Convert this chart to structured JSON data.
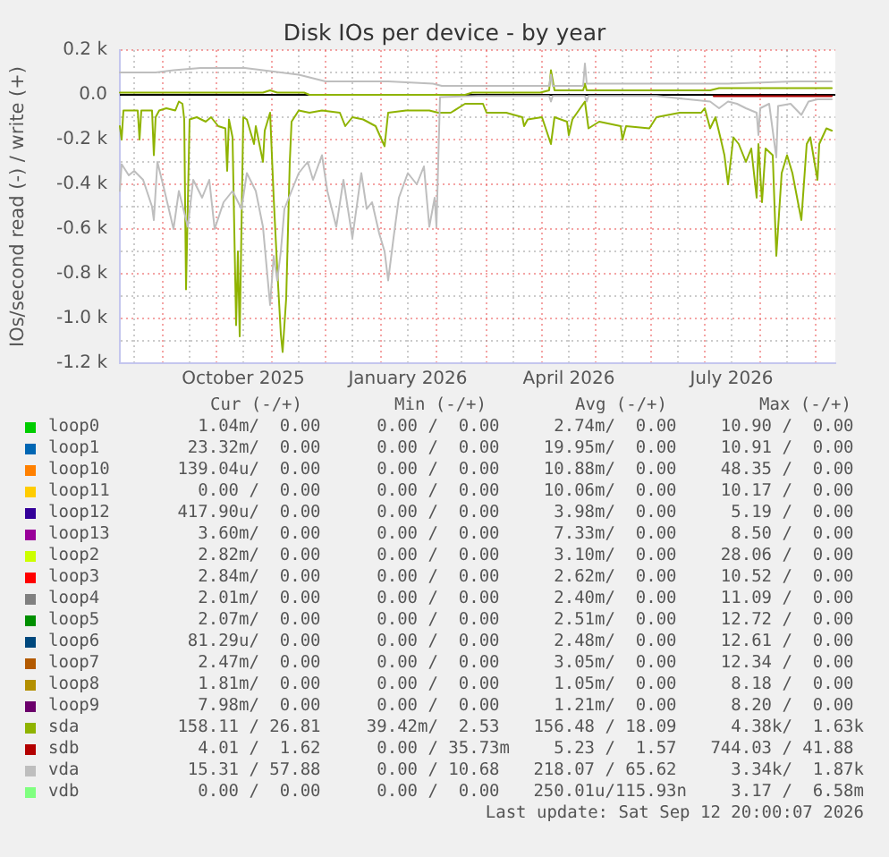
{
  "chart_data": {
    "type": "line",
    "title": "Disk IOs per device - by year",
    "ylabel": "IOs/second read (-) / write (+)",
    "legend": "bottom",
    "grid": true,
    "xlim": [
      "2025-08-08",
      "2026-09-12"
    ],
    "xticks": [
      {
        "value": "2025-08-16",
        "label": null
      },
      {
        "value": "2025-09-01",
        "label": null
      },
      {
        "value": "2025-09-16",
        "label": null
      },
      {
        "value": "2025-10-01",
        "label": null
      },
      {
        "value": "2025-10-16",
        "label": "October 2025"
      },
      {
        "value": "2025-11-01",
        "label": null
      },
      {
        "value": "2025-11-16",
        "label": null
      },
      {
        "value": "2025-12-01",
        "label": null
      },
      {
        "value": "2025-12-16",
        "label": null
      },
      {
        "value": "2026-01-01",
        "label": null
      },
      {
        "value": "2026-01-16",
        "label": "January 2026"
      },
      {
        "value": "2026-02-01",
        "label": null
      },
      {
        "value": "2026-02-15",
        "label": null
      },
      {
        "value": "2026-03-01",
        "label": null
      },
      {
        "value": "2026-03-16",
        "label": null
      },
      {
        "value": "2026-04-01",
        "label": null
      },
      {
        "value": "2026-04-16",
        "label": "April 2026"
      },
      {
        "value": "2026-05-01",
        "label": null
      },
      {
        "value": "2026-05-16",
        "label": null
      },
      {
        "value": "2026-06-01",
        "label": null
      },
      {
        "value": "2026-06-16",
        "label": null
      },
      {
        "value": "2026-07-01",
        "label": null
      },
      {
        "value": "2026-07-16",
        "label": "July 2026"
      },
      {
        "value": "2026-08-01",
        "label": null
      },
      {
        "value": "2026-08-16",
        "label": null
      },
      {
        "value": "2026-09-01",
        "label": null
      }
    ],
    "ylim": [
      -1200,
      200
    ],
    "yticks": [
      {
        "value": -1200,
        "label": "-1.2 k"
      },
      {
        "value": -1100,
        "label": null
      },
      {
        "value": -1000,
        "label": "-1.0 k"
      },
      {
        "value": -900,
        "label": null
      },
      {
        "value": -800,
        "label": "-0.8 k"
      },
      {
        "value": -700,
        "label": null
      },
      {
        "value": -600,
        "label": "-0.6 k"
      },
      {
        "value": -500,
        "label": null
      },
      {
        "value": -400,
        "label": "-0.4 k"
      },
      {
        "value": -300,
        "label": null
      },
      {
        "value": -200,
        "label": "-0.2 k"
      },
      {
        "value": -100,
        "label": null
      },
      {
        "value": 0,
        "label": "0.0"
      },
      {
        "value": 100,
        "label": null
      },
      {
        "value": 200,
        "label": "0.2 k"
      }
    ],
    "ref_lines": [
      {
        "axis": "y",
        "value": 0,
        "color": "#000000"
      }
    ],
    "series": [
      {
        "name": "loop0",
        "color": "#00cc00"
      },
      {
        "name": "loop1",
        "color": "#0066b3"
      },
      {
        "name": "loop10",
        "color": "#ff8000"
      },
      {
        "name": "loop11",
        "color": "#ffcc00"
      },
      {
        "name": "loop12",
        "color": "#330099"
      },
      {
        "name": "loop13",
        "color": "#990099"
      },
      {
        "name": "loop2",
        "color": "#ccff00"
      },
      {
        "name": "loop3",
        "color": "#ff0000"
      },
      {
        "name": "loop4",
        "color": "#808080"
      },
      {
        "name": "loop5",
        "color": "#008f00"
      },
      {
        "name": "loop6",
        "color": "#00487d"
      },
      {
        "name": "loop7",
        "color": "#b35a00"
      },
      {
        "name": "loop8",
        "color": "#b38f00"
      },
      {
        "name": "loop9",
        "color": "#6b006b"
      },
      {
        "name": "sda",
        "color": "#8fb300",
        "x": [
          "2025-08-08",
          "2025-08-09",
          "2025-08-10",
          "2025-08-18",
          "2025-08-19",
          "2025-08-20",
          "2025-08-26",
          "2025-08-27",
          "2025-08-28",
          "2025-08-30",
          "2025-09-03",
          "2025-09-08",
          "2025-09-10",
          "2025-09-12",
          "2025-09-13",
          "2025-09-14",
          "2025-09-16",
          "2025-09-20",
          "2025-09-25",
          "2025-09-28",
          "2025-10-02",
          "2025-10-06",
          "2025-10-07",
          "2025-10-08",
          "2025-10-10",
          "2025-10-12",
          "2025-10-13",
          "2025-10-14",
          "2025-10-16",
          "2025-10-18",
          "2025-10-22",
          "2025-10-23",
          "2025-10-27",
          "2025-10-28",
          "2025-10-31",
          "2025-11-02",
          "2025-11-04",
          "2025-11-06",
          "2025-11-07",
          "2025-11-09",
          "2025-11-11",
          "2025-11-12",
          "2025-11-16",
          "2025-11-22",
          "2025-11-29",
          "2025-12-09",
          "2025-12-12",
          "2025-12-16",
          "2025-12-22",
          "2025-12-29",
          "2026-01-03",
          "2026-01-05",
          "2026-01-15",
          "2026-01-28",
          "2026-02-02",
          "2026-02-09",
          "2026-02-17",
          "2026-02-27",
          "2026-03-01",
          "2026-03-12",
          "2026-03-21",
          "2026-03-22",
          "2026-03-24",
          "2026-04-01",
          "2026-04-06",
          "2026-04-08",
          "2026-04-15",
          "2026-04-16",
          "2026-04-18",
          "2026-04-25",
          "2026-04-27",
          "2026-05-03",
          "2026-05-15",
          "2026-05-16",
          "2026-05-18",
          "2026-05-31",
          "2026-06-04",
          "2026-06-17",
          "2026-06-29",
          "2026-07-01",
          "2026-07-04",
          "2026-07-07",
          "2026-07-10",
          "2026-07-12",
          "2026-07-14",
          "2026-07-17",
          "2026-07-20",
          "2026-07-24",
          "2026-07-27",
          "2026-07-30",
          "2026-07-31",
          "2026-08-02",
          "2026-08-04",
          "2026-08-08",
          "2026-08-10",
          "2026-08-13",
          "2026-08-16",
          "2026-08-19",
          "2026-08-24",
          "2026-08-27",
          "2026-08-29",
          "2026-09-02",
          "2026-09-03",
          "2026-09-07",
          "2026-09-10"
        ],
        "values": [
          -140,
          -200,
          -70,
          -70,
          -200,
          -70,
          -70,
          -270,
          -100,
          -70,
          -60,
          -70,
          -30,
          -40,
          -110,
          -870,
          -110,
          -100,
          -120,
          -100,
          -140,
          -150,
          -340,
          -110,
          -190,
          -1030,
          -700,
          -1080,
          -100,
          -110,
          -220,
          -140,
          -300,
          -160,
          -80,
          -460,
          -780,
          -1070,
          -1150,
          -910,
          -300,
          -120,
          -70,
          -80,
          -70,
          -80,
          -140,
          -100,
          -110,
          -140,
          -230,
          -80,
          -70,
          -70,
          -80,
          -80,
          -40,
          -40,
          -80,
          -80,
          -100,
          -140,
          -110,
          -100,
          -220,
          -100,
          -120,
          -180,
          -110,
          -30,
          -150,
          -120,
          -140,
          -200,
          -140,
          -150,
          -100,
          -80,
          -80,
          -60,
          -150,
          -100,
          -200,
          -270,
          -400,
          -190,
          -220,
          -300,
          -240,
          -460,
          -220,
          -480,
          -240,
          -270,
          -720,
          -350,
          -270,
          -350,
          -560,
          -220,
          -190,
          -380,
          -220,
          -150,
          -160
        ]
      },
      {
        "name": "sdb",
        "color": "#b30000",
        "x": [
          "2026-07-06",
          "2026-09-10"
        ],
        "values": [
          -6,
          -6
        ]
      },
      {
        "name": "vda",
        "color": "#bebebe",
        "x": [
          "2025-08-08",
          "2025-08-09",
          "2025-08-13",
          "2025-08-16",
          "2025-08-21",
          "2025-08-26",
          "2025-08-27",
          "2025-08-29",
          "2025-09-02",
          "2025-09-07",
          "2025-09-10",
          "2025-09-15",
          "2025-09-18",
          "2025-09-23",
          "2025-09-27",
          "2025-09-30",
          "2025-10-05",
          "2025-10-10",
          "2025-10-15",
          "2025-10-18",
          "2025-10-23",
          "2025-10-27",
          "2025-10-31",
          "2025-11-02",
          "2025-11-04",
          "2025-11-06",
          "2025-11-08",
          "2025-11-12",
          "2025-11-16",
          "2025-11-21",
          "2025-11-24",
          "2025-11-29",
          "2025-12-02",
          "2025-12-07",
          "2025-12-11",
          "2025-12-16",
          "2025-12-21",
          "2025-12-24",
          "2025-12-27",
          "2025-12-31",
          "2026-01-03",
          "2026-01-05",
          "2026-01-08",
          "2026-01-11",
          "2026-01-16",
          "2026-01-21",
          "2026-01-25",
          "2026-01-28",
          "2026-01-31",
          "2026-02-01",
          "2026-02-03",
          "2026-02-24",
          "2026-04-05",
          "2026-04-06",
          "2026-04-07",
          "2026-04-25",
          "2026-04-26",
          "2026-04-27",
          "2026-06-04",
          "2026-07-04",
          "2026-07-09",
          "2026-07-14",
          "2026-07-19",
          "2026-07-24",
          "2026-07-30",
          "2026-07-31",
          "2026-08-01",
          "2026-08-06",
          "2026-08-10",
          "2026-08-11",
          "2026-08-18",
          "2026-08-24",
          "2026-08-28",
          "2026-09-02",
          "2026-09-10"
        ],
        "values": [
          -430,
          -310,
          -360,
          -340,
          -380,
          -500,
          -560,
          -300,
          -430,
          -600,
          -430,
          -590,
          -380,
          -460,
          -380,
          -600,
          -480,
          -430,
          -510,
          -350,
          -430,
          -590,
          -940,
          -720,
          -830,
          -700,
          -510,
          -430,
          -350,
          -300,
          -380,
          -270,
          -430,
          -590,
          -380,
          -640,
          -350,
          -510,
          -480,
          -620,
          -700,
          -830,
          -640,
          -460,
          -350,
          -400,
          -320,
          -590,
          -460,
          -590,
          -10,
          -5,
          -5,
          -30,
          -5,
          -5,
          -30,
          -5,
          -5,
          -30,
          -60,
          -30,
          -40,
          -60,
          -80,
          -180,
          -60,
          -40,
          -280,
          -50,
          -40,
          -90,
          -30,
          -20,
          -20
        ]
      },
      {
        "name": "vdb",
        "color": "#80ff80"
      },
      {
        "color": "#8fb300",
        "x": [
          "2025-08-08",
          "2025-09-27",
          "2025-10-27",
          "2025-10-31",
          "2025-11-04",
          "2025-11-19",
          "2025-11-22",
          "2026-02-17",
          "2026-02-21",
          "2026-03-31",
          "2026-04-05",
          "2026-04-06",
          "2026-04-08",
          "2026-04-24",
          "2026-04-25",
          "2026-04-26",
          "2026-07-04",
          "2026-07-09",
          "2026-09-10"
        ],
        "values": [
          10,
          10,
          10,
          20,
          10,
          10,
          0,
          0,
          10,
          10,
          20,
          110,
          20,
          20,
          50,
          20,
          20,
          30,
          30
        ]
      },
      {
        "color": "#bebebe",
        "x": [
          "2025-08-08",
          "2025-08-18",
          "2025-08-28",
          "2025-09-07",
          "2025-09-22",
          "2025-10-07",
          "2025-10-17",
          "2025-10-27",
          "2025-11-06",
          "2025-11-16",
          "2025-11-26",
          "2025-12-01",
          "2026-01-05",
          "2026-01-30",
          "2026-02-04",
          "2026-03-16",
          "2026-04-05",
          "2026-04-06",
          "2026-04-07",
          "2026-04-24",
          "2026-04-25",
          "2026-04-26",
          "2026-06-04",
          "2026-07-14",
          "2026-08-20",
          "2026-09-10"
        ],
        "values": [
          100,
          100,
          100,
          110,
          120,
          120,
          120,
          110,
          100,
          90,
          70,
          60,
          60,
          50,
          40,
          40,
          40,
          90,
          40,
          40,
          140,
          50,
          50,
          50,
          60,
          60
        ]
      }
    ],
    "annotations": [
      "Cur (-/+)",
      "Min (-/+)",
      "Avg (-/+)",
      "Max (-/+)",
      "1.04m/  0.00",
      "0.00 /  0.00",
      "2.74m/  0.00",
      "10.90 /  0.00",
      "23.32m/  0.00",
      "0.00 /  0.00",
      "19.95m/  0.00",
      "10.91 /  0.00",
      "139.04u/  0.00",
      "0.00 /  0.00",
      "10.88m/  0.00",
      "48.35 /  0.00",
      "0.00 /  0.00",
      "0.00 /  0.00",
      "10.06m/  0.00",
      "10.17 /  0.00",
      "417.90u/  0.00",
      "0.00 /  0.00",
      "3.98m/  0.00",
      "5.19 /  0.00",
      "3.60m/  0.00",
      "0.00 /  0.00",
      "7.33m/  0.00",
      "8.50 /  0.00",
      "2.82m/  0.00",
      "0.00 /  0.00",
      "3.10m/  0.00",
      "28.06 /  0.00",
      "2.84m/  0.00",
      "0.00 /  0.00",
      "2.62m/  0.00",
      "10.52 /  0.00",
      "2.01m/  0.00",
      "0.00 /  0.00",
      "2.40m/  0.00",
      "11.09 /  0.00",
      "2.07m/  0.00",
      "0.00 /  0.00",
      "2.51m/  0.00",
      "12.72 /  0.00",
      "81.29u/  0.00",
      "0.00 /  0.00",
      "2.48m/  0.00",
      "12.61 /  0.00",
      "2.47m/  0.00",
      "0.00 /  0.00",
      "3.05m/  0.00",
      "12.34 /  0.00",
      "1.81m/  0.00",
      "0.00 /  0.00",
      "1.05m/  0.00",
      "8.18 /  0.00",
      "7.98m/  0.00",
      "0.00 /  0.00",
      "1.21m/  0.00",
      "8.20 /  0.00",
      "158.11 / 26.81",
      "39.42m/  2.53",
      "156.48 / 18.09",
      "4.38k/  1.63k",
      "4.01 /  1.62",
      "0.00 / 35.73m",
      "5.23 /  1.57",
      "744.03 / 41.88",
      "15.31 / 57.88",
      "0.00 / 10.68",
      "218.07 / 65.62",
      "3.34k/  1.87k",
      "0.00 /  0.00",
      "0.00 /  0.00",
      "250.01u/115.93n",
      "3.17 /  6.58m",
      "Last update: Sat Sep 12 20:00:07 2026"
    ]
  }
}
